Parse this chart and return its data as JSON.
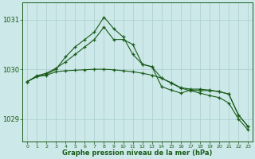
{
  "hours": [
    0,
    1,
    2,
    3,
    4,
    5,
    6,
    7,
    8,
    9,
    10,
    11,
    12,
    13,
    14,
    15,
    16,
    17,
    18,
    19,
    20,
    21,
    22,
    23
  ],
  "line1": [
    1029.75,
    1029.85,
    1029.9,
    1030.0,
    1030.25,
    1030.45,
    1030.6,
    1030.75,
    1031.05,
    1030.82,
    1030.65,
    1030.3,
    1030.1,
    1030.05,
    1029.82,
    1029.73,
    1029.63,
    1029.6,
    1029.6,
    1029.58,
    1029.55,
    1029.5,
    1029.08,
    1028.85
  ],
  "line2": [
    1029.75,
    1029.87,
    1029.92,
    1030.02,
    1030.15,
    1030.3,
    1030.45,
    1030.6,
    1030.85,
    1030.6,
    1030.6,
    1030.5,
    1030.1,
    1030.05,
    1029.65,
    1029.58,
    1029.52,
    1029.58,
    1029.57,
    1029.57,
    1029.55,
    1029.5,
    1029.08,
    1028.85
  ],
  "line3": [
    1029.75,
    1029.85,
    1029.88,
    1029.95,
    1029.97,
    1029.98,
    1029.99,
    1030.0,
    1030.0,
    1029.99,
    1029.97,
    1029.95,
    1029.92,
    1029.88,
    1029.82,
    1029.72,
    1029.62,
    1029.57,
    1029.52,
    1029.47,
    1029.43,
    1029.32,
    1029.0,
    1028.78
  ],
  "line_color": "#1a5c1a",
  "bg_color": "#cce8e8",
  "grid_color": "#aacece",
  "ylabel_vals": [
    1029,
    1030,
    1031
  ],
  "ylabel_labels": [
    "1029",
    "1030",
    "1031"
  ],
  "ylim": [
    1028.55,
    1031.35
  ],
  "xlim": [
    -0.5,
    23.5
  ],
  "xlabel": "Graphe pression niveau de la mer (hPa)"
}
